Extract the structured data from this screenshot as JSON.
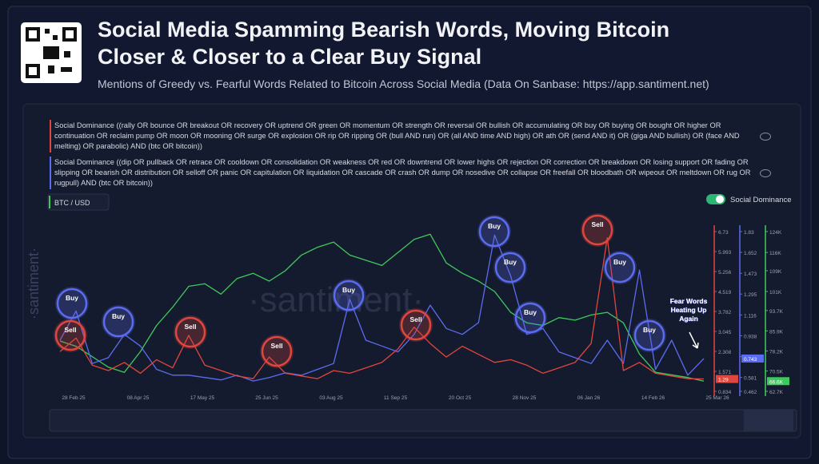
{
  "chart_data": {
    "type": "line",
    "title": [
      "Social Media Spamming Bearish Words, Moving Bitcoin",
      "Closer & Closer to a Clear Buy Signal"
    ],
    "subtitle": "Mentions of Greedy vs. Fearful Words Related to Bitcoin Across Social Media (Data On Sanbase: https://app.santiment.net)",
    "categories": [
      "28 Feb 25",
      null,
      null,
      null,
      "08 Apr 25",
      null,
      null,
      null,
      "17 May 25",
      null,
      null,
      null,
      "25 Jun 25",
      null,
      null,
      null,
      "03 Aug 25",
      null,
      null,
      null,
      "11 Sep 25",
      null,
      null,
      null,
      "20 Oct 25",
      null,
      null,
      null,
      "28 Nov 25",
      null,
      null,
      null,
      "06 Jan 26",
      null,
      null,
      null,
      "14 Feb 26",
      null,
      null,
      null,
      "25 Mar 26"
    ],
    "series": [
      {
        "name": "Social Dominance ((rally OR bounce OR breakout OR recovery OR uptrend OR green OR momentum OR strength OR reversal OR bullish OR accumulating OR buy OR buying OR bought OR higher OR continuation OR reclaim pump OR moon OR mooning OR surge OR explosion OR rip OR ripping OR (bull AND run) OR (all AND time AND high) OR ath OR (send AND it) OR (giga AND bullish) OR (face AND melting) OR parabolic) AND (btc OR bitcoin))",
        "color": "#e0463d",
        "axis": "y",
        "values": [
          2.3,
          2.8,
          1.8,
          1.6,
          1.9,
          1.5,
          2.0,
          1.7,
          2.9,
          1.8,
          1.6,
          1.4,
          1.3,
          2.1,
          1.5,
          1.4,
          1.3,
          1.6,
          1.5,
          1.7,
          1.9,
          2.4,
          3.2,
          2.6,
          2.1,
          2.5,
          2.2,
          1.9,
          2.0,
          1.8,
          1.5,
          1.7,
          1.9,
          2.6,
          6.5,
          1.6,
          1.9,
          1.5,
          1.4,
          1.3,
          1.29
        ],
        "value_labels": [
          null,
          null,
          null,
          null,
          null,
          null,
          null,
          null,
          null,
          null,
          null,
          null,
          null,
          null,
          null,
          null,
          null,
          null,
          null,
          null,
          null,
          null,
          null,
          null,
          null,
          null,
          null,
          null,
          null,
          null,
          null,
          null,
          null,
          null,
          null,
          null,
          null,
          null,
          null,
          null,
          "1.29"
        ]
      },
      {
        "name": "Social Dominance ((dip OR pullback OR retrace OR cooldown OR consolidation OR weakness OR red OR downtrend OR lower highs OR rejection OR correction OR breakdown OR losing support OR fading OR slipping OR bearish OR distribution OR selloff OR panic OR capitulation OR liquidation OR cascade OR crash OR dump OR nosedive OR collapse OR freefall OR bloodbath OR wipeout OR meltdown OR rug OR rugpull) AND (btc OR bitcoin))",
        "color": "#5b6cf0",
        "axis": "y2",
        "values": [
          0.9,
          1.15,
          0.7,
          0.75,
          0.95,
          0.85,
          0.65,
          0.6,
          0.6,
          0.58,
          0.56,
          0.6,
          0.55,
          0.58,
          0.62,
          0.6,
          0.65,
          0.7,
          1.25,
          0.9,
          0.85,
          0.8,
          0.95,
          1.2,
          1.0,
          0.95,
          1.05,
          1.8,
          1.45,
          0.95,
          1.0,
          0.8,
          0.75,
          0.7,
          0.9,
          0.7,
          1.5,
          0.65,
          0.9,
          0.6,
          0.743
        ],
        "value_labels": [
          null,
          null,
          null,
          null,
          null,
          null,
          null,
          null,
          null,
          null,
          null,
          null,
          null,
          null,
          null,
          null,
          null,
          null,
          null,
          null,
          null,
          null,
          null,
          null,
          null,
          null,
          null,
          null,
          null,
          null,
          null,
          null,
          null,
          null,
          null,
          null,
          null,
          null,
          null,
          null,
          "0.743"
        ]
      },
      {
        "name": "BTC / USD",
        "color": "#3ec95d",
        "axis": "y3",
        "values": [
          82000,
          80000,
          76000,
          72000,
          70000,
          78000,
          88000,
          95000,
          103000,
          104000,
          100000,
          106000,
          108000,
          105000,
          109000,
          115000,
          118000,
          120000,
          115000,
          113000,
          111000,
          116000,
          121000,
          123000,
          112000,
          108000,
          105000,
          101000,
          93000,
          89000,
          88000,
          91000,
          90000,
          92000,
          93000,
          89000,
          77000,
          70000,
          69000,
          68000,
          66600
        ],
        "value_labels": [
          null,
          null,
          null,
          null,
          null,
          null,
          null,
          null,
          null,
          null,
          null,
          null,
          null,
          null,
          null,
          null,
          null,
          null,
          null,
          null,
          null,
          null,
          null,
          null,
          null,
          null,
          null,
          null,
          null,
          null,
          null,
          null,
          null,
          null,
          null,
          null,
          null,
          null,
          null,
          null,
          "66.6K"
        ]
      }
    ],
    "ylim": [
      0.834,
      6.73
    ],
    "yticks": [
      0.834,
      1.571,
      2.308,
      3.045,
      3.782,
      4.519,
      5.256,
      5.993,
      6.73
    ],
    "y2lim": [
      0.462,
      1.83
    ],
    "y2ticks": [
      0.462,
      0.581,
      0.759,
      0.938,
      1.116,
      1.295,
      1.473,
      1.652,
      1.83
    ],
    "y3lim": [
      62700,
      124000
    ],
    "y3ticks": [
      {
        "value": 62700,
        "label": "62.7K"
      },
      {
        "value": 70500,
        "label": "70.5K"
      },
      {
        "value": 78200,
        "label": "78.2K"
      },
      {
        "value": 85900,
        "label": "85.9K"
      },
      {
        "value": 93700,
        "label": "93.7K"
      },
      {
        "value": 101000,
        "label": "101K"
      },
      {
        "value": 109000,
        "label": "109K"
      },
      {
        "value": 116000,
        "label": "116K"
      },
      {
        "value": 124000,
        "label": "124K"
      }
    ],
    "grid": false,
    "annotations": [
      "Buy",
      "Sell",
      "Buy",
      "Sell",
      "Sell",
      "Buy",
      "Sell",
      "Buy",
      "Buy",
      "Buy",
      "Sell",
      "Buy",
      "Buy",
      "Fear Words Heating Up Again"
    ]
  },
  "ui": {
    "toggle_label": "Social Dominance",
    "watermark": "·santiment·"
  }
}
